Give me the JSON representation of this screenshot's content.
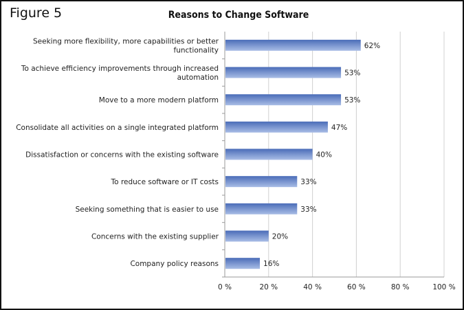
{
  "figure_label": "Figure 5",
  "chart_data": {
    "type": "bar",
    "orientation": "horizontal",
    "title": "Reasons to Change Software",
    "categories": [
      "Seeking more flexibility, more capabilities or better functionality",
      "To achieve efficiency improvements through increased automation",
      "Move to a more modern platform",
      "Consolidate all activities on a single integrated platform",
      "Dissatisfaction or concerns with the existing software",
      "To reduce software or IT costs",
      "Seeking something that is easier to use",
      "Concerns with the existing supplier",
      "Company policy reasons"
    ],
    "category_lines": [
      [
        "Seeking more flexibility, more capabilities or better",
        "functionality"
      ],
      [
        "To achieve efficiency improvements through increased",
        "automation"
      ],
      [
        "Move to a more modern platform"
      ],
      [
        "Consolidate all activities on a single integrated platform"
      ],
      [
        "Dissatisfaction or concerns with the existing software"
      ],
      [
        "To reduce software or IT costs"
      ],
      [
        "Seeking something that is easier to use"
      ],
      [
        "Concerns with the existing supplier"
      ],
      [
        "Company policy reasons"
      ]
    ],
    "values": [
      62,
      53,
      53,
      47,
      40,
      33,
      33,
      20,
      16
    ],
    "data_labels": [
      "62%",
      "53%",
      "53%",
      "47%",
      "40%",
      "33%",
      "33%",
      "20%",
      "16%"
    ],
    "xlim": [
      0,
      100
    ],
    "xticks": [
      0,
      20,
      40,
      60,
      80,
      100
    ],
    "xtick_labels": [
      "0 %",
      "20 %",
      "40 %",
      "60 %",
      "80 %",
      "100 %"
    ],
    "xlabel": "",
    "ylabel": "",
    "grid": true,
    "legend": "none",
    "colors": {
      "bar_top": "#4a6cb8",
      "bar_bottom": "#a9bde6",
      "grid": "#d0d0d0"
    }
  }
}
